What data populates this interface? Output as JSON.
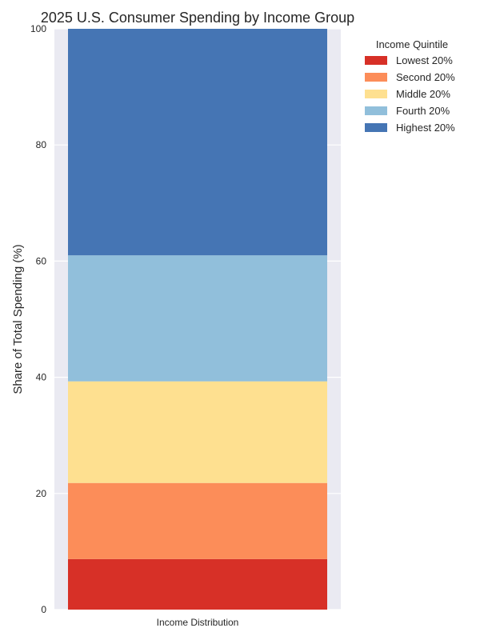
{
  "chart_data": {
    "type": "bar",
    "stacked": true,
    "title": "2025 U.S. Consumer Spending by Income Group",
    "xlabel": "",
    "ylabel": "Share of Total Spending (%)",
    "categories": [
      "Income Distribution"
    ],
    "ylim": [
      0,
      100
    ],
    "yticks": [
      0,
      20,
      40,
      60,
      80,
      100
    ],
    "grid": true,
    "legend": {
      "title": "Income Quintile",
      "placement": "top-right, outside"
    },
    "series": [
      {
        "name": "Lowest 20%",
        "values": [
          8.7
        ],
        "color": "#d73027"
      },
      {
        "name": "Second 20%",
        "values": [
          13.1
        ],
        "color": "#fc8d59"
      },
      {
        "name": "Middle 20%",
        "values": [
          17.5
        ],
        "color": "#fee090"
      },
      {
        "name": "Fourth 20%",
        "values": [
          21.7
        ],
        "color": "#91bfdb"
      },
      {
        "name": "Highest 20%",
        "values": [
          39.0
        ],
        "color": "#4575b4"
      }
    ],
    "colors": {
      "plot_background": "#eaeaf2",
      "grid": "#ffffff"
    }
  }
}
